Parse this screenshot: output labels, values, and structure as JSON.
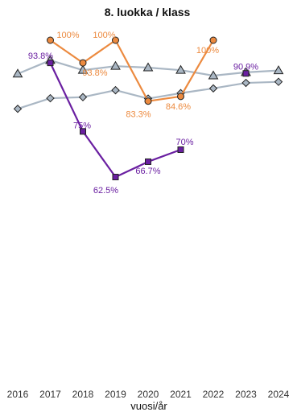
{
  "chart_data": {
    "type": "line",
    "title": "8. luokka / klass",
    "xlabel": "vuosi/år",
    "ylabel": "",
    "x": [
      2016,
      2017,
      2018,
      2019,
      2020,
      2021,
      2022,
      2023,
      2024
    ],
    "ylim": [
      0,
      100
    ],
    "grid": false,
    "legend": "none",
    "series": [
      {
        "color": "#6a1fa1",
        "marker": "square",
        "values": [
          null,
          93.8,
          75,
          62.5,
          66.7,
          70,
          null,
          90.9,
          null
        ],
        "labels": [
          "",
          "93.8%",
          "75%",
          "62.5%",
          "66.7%",
          "70%",
          "",
          "90.9%",
          ""
        ]
      },
      {
        "color": "#ec8a3f",
        "marker": "circle",
        "values": [
          null,
          100,
          93.8,
          100,
          83.3,
          84.6,
          100,
          null,
          null
        ],
        "labels": [
          "",
          "100%",
          "93.8%",
          "100%",
          "83.3%",
          "84.6%",
          "100%",
          "",
          ""
        ]
      },
      {
        "color": "#aab7c4",
        "marker": "triangle",
        "values": [
          90.8,
          94.5,
          91.8,
          92.9,
          92.5,
          91.8,
          90.3,
          91.2,
          91.7
        ],
        "labels": []
      },
      {
        "color": "#aab7c4",
        "marker": "diamond",
        "values": [
          81.2,
          84.1,
          84.4,
          86.3,
          84.0,
          85.5,
          86.8,
          88.3,
          88.6
        ],
        "labels": []
      }
    ]
  }
}
